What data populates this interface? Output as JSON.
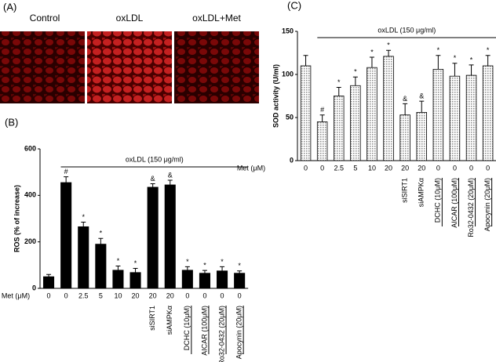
{
  "figure": {
    "panel_labels": [
      "(A)",
      "(B)",
      "(C)"
    ],
    "image_labels": [
      "Control",
      "oxLDL",
      "oxLDL+Met"
    ]
  },
  "chart_data": [
    {
      "type": "bar",
      "ylabel": "ROS (% of increase)",
      "xlabel": "Met (μM)",
      "bracket_label": "oxLDL (150 μg/ml)",
      "categories": [
        "0",
        "0",
        "2.5",
        "5",
        "10",
        "20",
        "20",
        "20",
        "0",
        "0",
        "0",
        "0"
      ],
      "treatments": [
        null,
        null,
        null,
        null,
        null,
        null,
        "siSIRT1",
        "siAMPKα",
        "DCHC (10μM)",
        "AICAR (100μM)",
        "Ro32-0432 (20μM)",
        "Apocynin (20μM)"
      ],
      "values": [
        50,
        455,
        265,
        190,
        78,
        68,
        435,
        445,
        78,
        65,
        75,
        65
      ],
      "errors": [
        10,
        25,
        20,
        25,
        18,
        18,
        15,
        20,
        15,
        12,
        18,
        10
      ],
      "annotations": [
        null,
        "#",
        "*",
        "*",
        "*",
        "*",
        "&",
        "&",
        "*",
        "*",
        "*",
        "*"
      ],
      "color": "#000000",
      "ylim": [
        0,
        600
      ],
      "yticks": [
        0,
        200,
        400,
        600
      ]
    },
    {
      "type": "bar",
      "ylabel": "SOD activity (U/ml)",
      "xlabel": "Met (μM)",
      "bracket_label": "oxLDL (150 μg/ml)",
      "categories": [
        "0",
        "0",
        "2.5",
        "5",
        "10",
        "20",
        "20",
        "20",
        "0",
        "0",
        "0",
        "0"
      ],
      "treatments": [
        null,
        null,
        null,
        null,
        null,
        null,
        "siSIRT1",
        "siAMPKα",
        "DCHC (10μM)",
        "AICAR (100μM)",
        "Ro32-0432 (20μM)",
        "Apocynin (20μM)"
      ],
      "values": [
        110,
        45,
        75,
        87,
        108,
        121,
        53,
        56,
        106,
        98,
        99,
        110
      ],
      "errors": [
        12,
        8,
        10,
        10,
        12,
        7,
        13,
        13,
        16,
        15,
        12,
        12
      ],
      "annotations": [
        null,
        "#",
        "*",
        "*",
        "*",
        "*",
        "&",
        "&",
        "*",
        "*",
        "*",
        "*"
      ],
      "color": "#cfcfcf",
      "ylim": [
        0,
        150
      ],
      "yticks": [
        0,
        50,
        100,
        150
      ]
    }
  ]
}
